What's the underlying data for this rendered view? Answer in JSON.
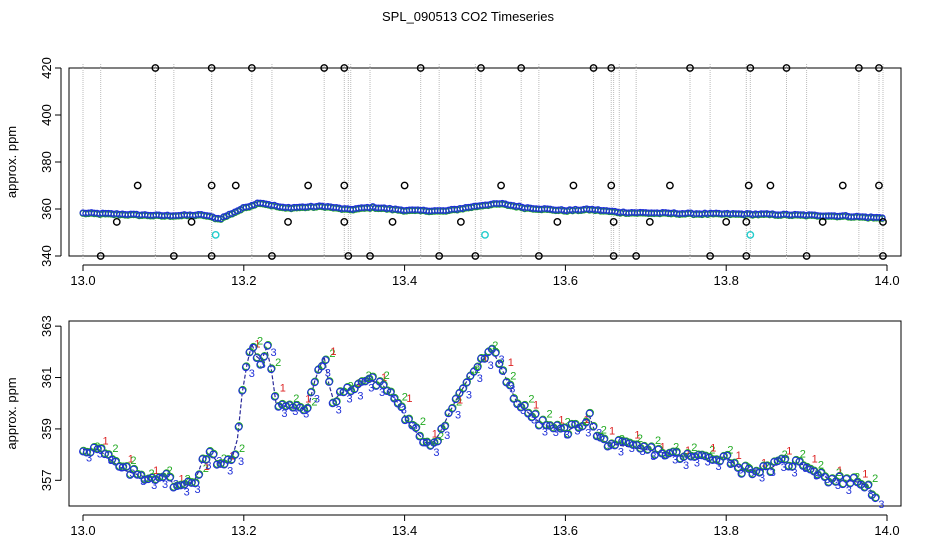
{
  "title": "SPL_090513  CO2 Timeseries",
  "colors": {
    "axis": "#000000",
    "drop": "#bbbbbb",
    "outlier": "#000000",
    "flagged": "#22cccc",
    "s1": "#dd2222",
    "s2": "#22aa22",
    "s3": "#1f2fd8",
    "line": "#2a2a99"
  },
  "chart_data": [
    {
      "type": "scatter",
      "panel": "top",
      "title": "",
      "xlabel": "",
      "ylabel": "approx. ppm",
      "xlim": [
        13.0,
        14.0
      ],
      "ylim": [
        340,
        420
      ],
      "x_ticks": [
        "13.0",
        "13.2",
        "13.4",
        "13.6",
        "13.8",
        "14.0"
      ],
      "y_ticks": [
        "340",
        "360",
        "380",
        "400",
        "420"
      ],
      "baseline": [
        [
          13.0,
          358.3
        ],
        [
          13.05,
          357.8
        ],
        [
          13.1,
          357.2
        ],
        [
          13.15,
          357.5
        ],
        [
          13.17,
          355.8
        ],
        [
          13.2,
          360.5
        ],
        [
          13.22,
          362.8
        ],
        [
          13.25,
          360.5
        ],
        [
          13.3,
          361.2
        ],
        [
          13.33,
          359.8
        ],
        [
          13.36,
          360.8
        ],
        [
          13.4,
          359.5
        ],
        [
          13.45,
          359.2
        ],
        [
          13.5,
          361.8
        ],
        [
          13.52,
          362.3
        ],
        [
          13.55,
          360.6
        ],
        [
          13.6,
          359.4
        ],
        [
          13.63,
          359.9
        ],
        [
          13.67,
          358.6
        ],
        [
          13.75,
          358.1
        ],
        [
          13.85,
          357.8
        ],
        [
          13.95,
          357.0
        ],
        [
          13.99,
          356.3
        ]
      ],
      "outliers_high": [
        13.09,
        13.16,
        13.21,
        13.3,
        13.325,
        13.42,
        13.495,
        13.545,
        13.635,
        13.657,
        13.755,
        13.83,
        13.875,
        13.965,
        13.99
      ],
      "outliers_low": [
        13.022,
        13.113,
        13.16,
        13.235,
        13.33,
        13.357,
        13.443,
        13.488,
        13.567,
        13.66,
        13.688,
        13.78,
        13.825,
        13.9,
        13.995
      ],
      "outliers_mid": [
        [
          13.068,
          370
        ],
        [
          13.16,
          370
        ],
        [
          13.19,
          370
        ],
        [
          13.28,
          370
        ],
        [
          13.325,
          370
        ],
        [
          13.4,
          370
        ],
        [
          13.52,
          370
        ],
        [
          13.61,
          370
        ],
        [
          13.657,
          370
        ],
        [
          13.73,
          370
        ],
        [
          13.828,
          370
        ],
        [
          13.855,
          370
        ],
        [
          13.945,
          370
        ],
        [
          13.99,
          370
        ],
        [
          13.042,
          354.5
        ],
        [
          13.135,
          354.5
        ],
        [
          13.255,
          354.5
        ],
        [
          13.325,
          354.5
        ],
        [
          13.385,
          354.5
        ],
        [
          13.47,
          354.5
        ],
        [
          13.59,
          354.5
        ],
        [
          13.66,
          354.5
        ],
        [
          13.705,
          354.5
        ],
        [
          13.8,
          354.5
        ],
        [
          13.825,
          354.5
        ],
        [
          13.92,
          354.5
        ],
        [
          13.995,
          354.5
        ]
      ],
      "flagged": [
        [
          13.165,
          349
        ],
        [
          13.5,
          349
        ],
        [
          13.83,
          349
        ]
      ]
    },
    {
      "type": "line",
      "panel": "bottom",
      "title": "",
      "xlabel": "",
      "ylabel": "approx. ppm",
      "xlim": [
        13.0,
        14.0
      ],
      "ylim": [
        356,
        363.2
      ],
      "x_ticks": [
        "13.0",
        "13.2",
        "13.4",
        "13.6",
        "13.8",
        "14.0"
      ],
      "y_ticks": [
        "357",
        "359",
        "361",
        "363"
      ],
      "series": [
        {
          "name": "1",
          "symbol": "1"
        },
        {
          "name": "2",
          "symbol": "2"
        },
        {
          "name": "3",
          "symbol": "3"
        }
      ],
      "x": [
        13.0,
        13.02,
        13.03,
        13.05,
        13.08,
        13.1,
        13.12,
        13.14,
        13.15,
        13.16,
        13.17,
        13.19,
        13.2,
        13.21,
        13.22,
        13.23,
        13.24,
        13.26,
        13.28,
        13.29,
        13.3,
        13.31,
        13.32,
        13.33,
        13.35,
        13.37,
        13.39,
        13.4,
        13.41,
        13.43,
        13.44,
        13.46,
        13.48,
        13.5,
        13.51,
        13.52,
        13.54,
        13.57,
        13.6,
        13.62,
        13.63,
        13.64,
        13.66,
        13.7,
        13.75,
        13.8,
        13.82,
        13.85,
        13.87,
        13.9,
        13.93,
        13.95,
        13.97,
        13.99
      ],
      "values": [
        358.2,
        358.2,
        357.9,
        357.4,
        357.1,
        357.2,
        356.7,
        357.0,
        357.9,
        358.0,
        357.6,
        358.0,
        361.0,
        362.3,
        361.5,
        362.3,
        360.0,
        359.8,
        359.8,
        361.1,
        361.8,
        360.0,
        360.4,
        360.5,
        360.9,
        360.8,
        360.1,
        359.5,
        359.0,
        358.4,
        358.6,
        359.9,
        361.0,
        361.8,
        362.0,
        361.4,
        360.0,
        359.2,
        358.9,
        359.2,
        359.5,
        358.6,
        358.4,
        358.2,
        357.9,
        357.9,
        357.4,
        357.4,
        357.7,
        357.6,
        357.0,
        357.0,
        356.9,
        356.3
      ]
    }
  ]
}
